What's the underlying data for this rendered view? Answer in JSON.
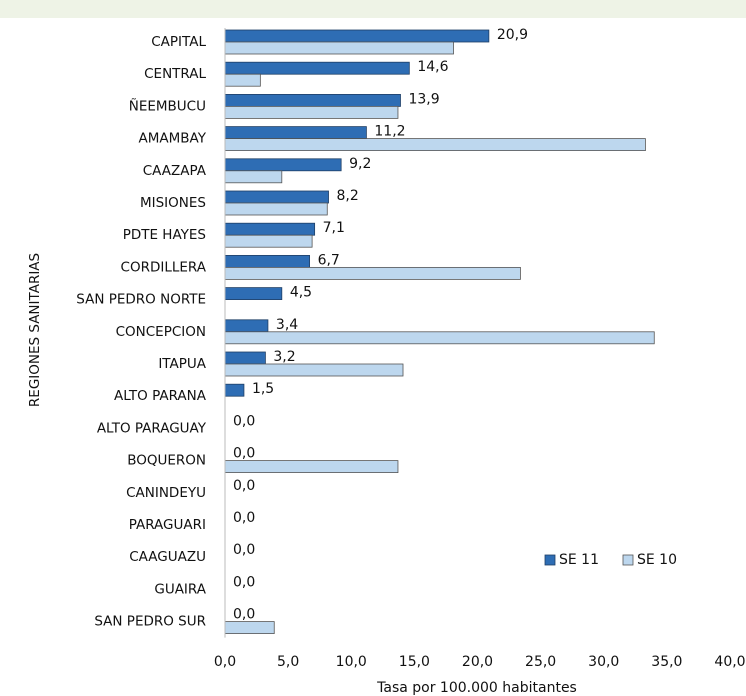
{
  "chart_data": {
    "type": "bar",
    "orientation": "horizontal",
    "x_label": "Tasa por 100.000 habitantes",
    "y_label": "REGIONES SANITARIAS",
    "categories": [
      "CAPITAL",
      "CENTRAL",
      "ÑEEMBUCU",
      "AMAMBAY",
      "CAAZAPA",
      "MISIONES",
      "PDTE HAYES",
      "CORDILLERA",
      "SAN PEDRO NORTE",
      "CONCEPCION",
      "ITAPUA",
      "ALTO PARANA",
      "ALTO PARAGUAY",
      "BOQUERON",
      "CANINDEYU",
      "PARAGUARI",
      "CAAGUAZU",
      "GUAIRA",
      "SAN PEDRO SUR"
    ],
    "series": [
      {
        "name": "SE 11",
        "color": "#2e6db4",
        "values": [
          20.9,
          14.6,
          13.9,
          11.2,
          9.2,
          8.2,
          7.1,
          6.7,
          4.5,
          3.4,
          3.2,
          1.5,
          0,
          0,
          0,
          0,
          0,
          0,
          0
        ],
        "value_labels": [
          "20,9",
          "14,6",
          "13,9",
          "11,2",
          "9,2",
          "8,2",
          "7,1",
          "6,7",
          "4,5",
          "3,4",
          "3,2",
          "1,5",
          "0,0",
          "0,0",
          "0,0",
          "0,0",
          "0,0",
          "0,0",
          "0,0"
        ]
      },
      {
        "name": "SE 10",
        "color": "#bdd7ee",
        "values": [
          18.1,
          2.8,
          13.7,
          33.3,
          4.5,
          8.1,
          6.9,
          23.4,
          0,
          34.0,
          14.1,
          0,
          0,
          13.7,
          0,
          0,
          0,
          0,
          3.9
        ]
      }
    ],
    "xlim": [
      0,
      40
    ],
    "xticks": [
      {
        "value": 0,
        "label": "0,0"
      },
      {
        "value": 5,
        "label": "5,0"
      },
      {
        "value": 10,
        "label": "10,0"
      },
      {
        "value": 15,
        "label": "15,0"
      },
      {
        "value": 20,
        "label": "20,0"
      },
      {
        "value": 25,
        "label": "25,0"
      },
      {
        "value": 30,
        "label": "30,0"
      },
      {
        "value": 35,
        "label": "35,0"
      },
      {
        "value": 40,
        "label": "40,0"
      }
    ],
    "legend": "lower right"
  }
}
